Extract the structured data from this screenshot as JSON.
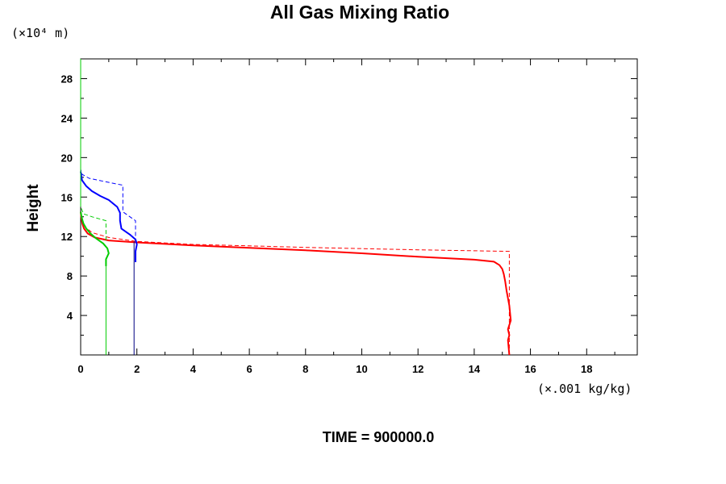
{
  "title": "All Gas Mixing Ratio",
  "y_units": "(×10⁴ m)",
  "x_units": "(×.001 kg/kg)",
  "y_axis_label": "Height",
  "time_label": "TIME = 900000.0",
  "chart_data": {
    "type": "line",
    "title": "All Gas Mixing Ratio",
    "xlabel": "(×.001 kg/kg)",
    "ylabel": "Height",
    "xlim": [
      0,
      19.8
    ],
    "ylim": [
      0,
      30
    ],
    "xticks": [
      0,
      2,
      4,
      6,
      8,
      10,
      12,
      14,
      16,
      18
    ],
    "yticks": [
      4,
      8,
      12,
      16,
      20,
      24,
      28
    ],
    "grid": false,
    "series": [
      {
        "color": "#ff0000",
        "style": "solid",
        "width": 2,
        "points": [
          [
            15.25,
            0
          ],
          [
            15.2,
            1.5
          ],
          [
            15.25,
            2
          ],
          [
            15.2,
            2.6
          ],
          [
            15.3,
            3.5
          ],
          [
            15.25,
            5
          ],
          [
            15.15,
            6.5
          ],
          [
            15.1,
            7.5
          ],
          [
            15.05,
            8.2
          ],
          [
            15.0,
            8.7
          ],
          [
            14.9,
            9.1
          ],
          [
            14.7,
            9.45
          ],
          [
            14.0,
            9.65
          ],
          [
            12.0,
            9.95
          ],
          [
            10.0,
            10.3
          ],
          [
            8.0,
            10.6
          ],
          [
            6.0,
            10.85
          ],
          [
            4.0,
            11.1
          ],
          [
            2.0,
            11.4
          ],
          [
            1.0,
            11.6
          ],
          [
            0.5,
            11.9
          ],
          [
            0.25,
            12.3
          ],
          [
            0.12,
            12.8
          ],
          [
            0.06,
            13.3
          ],
          [
            0.02,
            14.0
          ],
          [
            0,
            14.5
          ]
        ]
      },
      {
        "color": "#ff0000",
        "style": "dashed",
        "width": 1,
        "points": [
          [
            15.25,
            0
          ],
          [
            15.25,
            10.5
          ],
          [
            12.0,
            10.65
          ],
          [
            8.0,
            10.9
          ],
          [
            6.0,
            11.05
          ],
          [
            4.0,
            11.2
          ],
          [
            2.0,
            11.5
          ],
          [
            1.0,
            11.9
          ],
          [
            0.4,
            12.4
          ],
          [
            0.15,
            13.0
          ],
          [
            0.05,
            13.6
          ],
          [
            0,
            14.0
          ]
        ]
      },
      {
        "color": "#0000ff",
        "style": "solid",
        "width": 2,
        "points": [
          [
            1.95,
            9.4
          ],
          [
            1.95,
            10.5
          ],
          [
            2.0,
            11.2
          ],
          [
            1.95,
            11.7
          ],
          [
            1.75,
            12.2
          ],
          [
            1.45,
            12.8
          ],
          [
            1.4,
            13.6
          ],
          [
            1.4,
            14.4
          ],
          [
            1.3,
            15.0
          ],
          [
            1.0,
            15.7
          ],
          [
            0.7,
            16.1
          ],
          [
            0.4,
            16.6
          ],
          [
            0.2,
            17.1
          ],
          [
            0.05,
            17.7
          ],
          [
            0,
            18.6
          ]
        ]
      },
      {
        "color": "#0000ff",
        "style": "dashed",
        "width": 1,
        "points": [
          [
            1.95,
            11.4
          ],
          [
            1.95,
            13.6
          ],
          [
            1.5,
            14.5
          ],
          [
            1.5,
            17.2
          ],
          [
            0.8,
            17.6
          ],
          [
            0.3,
            17.9
          ],
          [
            0.05,
            18.3
          ],
          [
            0,
            18.8
          ]
        ]
      },
      {
        "color": "#000080",
        "style": "solid",
        "width": 1,
        "points": [
          [
            1.9,
            0
          ],
          [
            1.9,
            11.5
          ]
        ]
      },
      {
        "color": "#00cc00",
        "style": "solid",
        "width": 2,
        "points": [
          [
            0.9,
            9.0
          ],
          [
            0.9,
            9.7
          ],
          [
            1.0,
            10.3
          ],
          [
            0.95,
            10.8
          ],
          [
            0.8,
            11.3
          ],
          [
            0.55,
            11.8
          ],
          [
            0.35,
            12.3
          ],
          [
            0.2,
            12.8
          ],
          [
            0.1,
            13.3
          ],
          [
            0.05,
            13.8
          ],
          [
            0,
            14.5
          ]
        ]
      },
      {
        "color": "#00cc00",
        "style": "dashed",
        "width": 1,
        "points": [
          [
            0.9,
            11.6
          ],
          [
            0.9,
            13.6
          ],
          [
            0.4,
            14.0
          ],
          [
            0.1,
            14.3
          ],
          [
            0,
            15.0
          ]
        ]
      },
      {
        "color": "#00cc00",
        "style": "solid",
        "width": 1,
        "points": [
          [
            0.9,
            0
          ],
          [
            0.9,
            9.2
          ]
        ]
      },
      {
        "color": "#00cc00",
        "style": "solid",
        "width": 1,
        "points": [
          [
            0,
            15.0
          ],
          [
            0,
            30
          ]
        ]
      }
    ]
  }
}
